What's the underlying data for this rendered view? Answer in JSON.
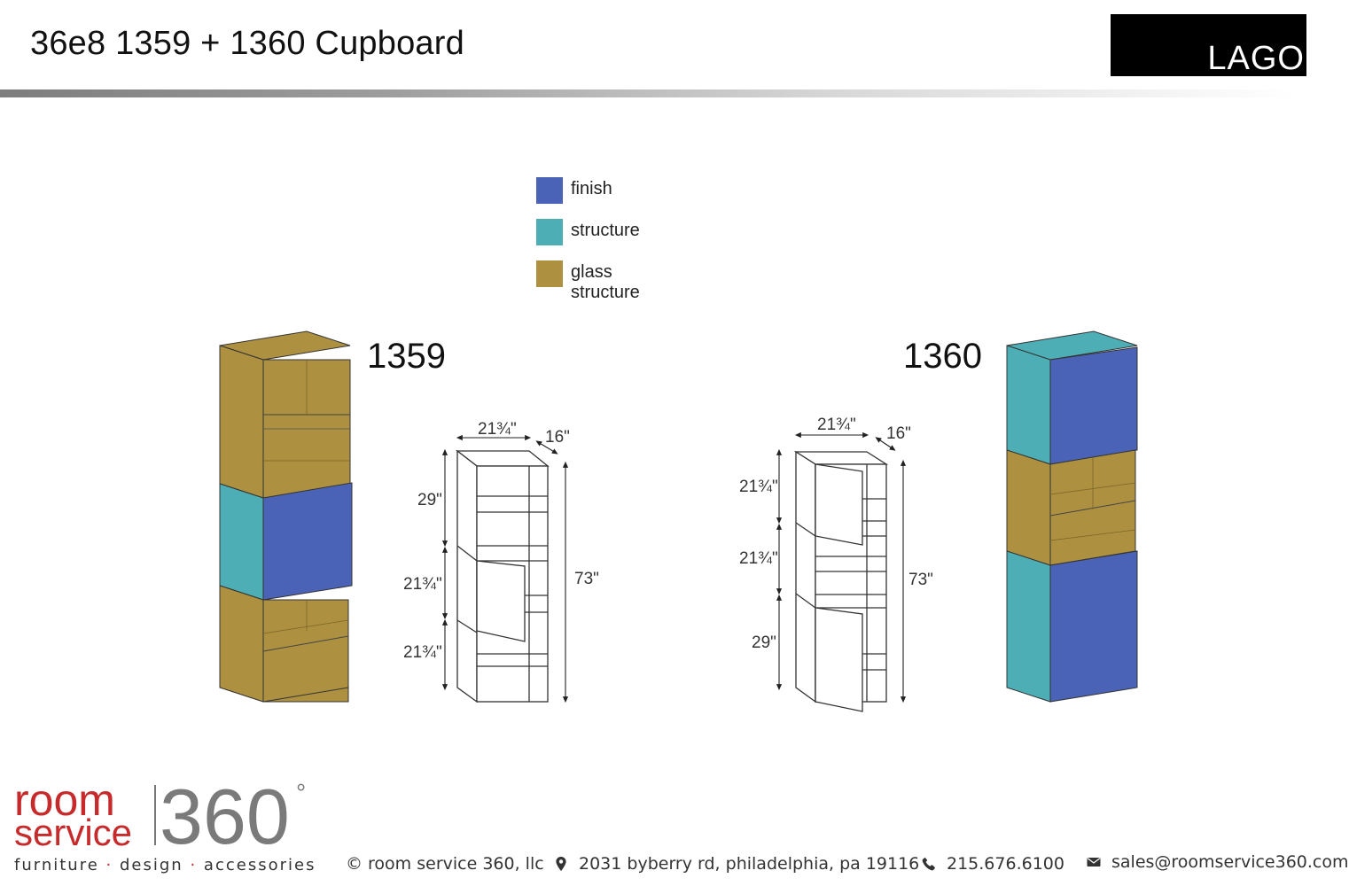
{
  "header": {
    "title": "36e8 1359 + 1360 Cupboard",
    "brand": "LAGO"
  },
  "legend": [
    {
      "label": "finish",
      "color": "#4a63b6"
    },
    {
      "label": "structure",
      "color": "#4daeb6"
    },
    {
      "label": "glass structure",
      "color": "#ad9040"
    }
  ],
  "models": {
    "left": {
      "label": "1359",
      "width": "21¾\"",
      "depth": "16\"",
      "total_height": "73\"",
      "section_heights": [
        "29\"",
        "21¾\"",
        "21¾\""
      ]
    },
    "right": {
      "label": "1360",
      "width": "21¾\"",
      "depth": "16\"",
      "total_height": "73\"",
      "section_heights": [
        "21¾\"",
        "21¾\"",
        "29\""
      ]
    }
  },
  "footer": {
    "logo_word_1": "room",
    "logo_word_2": "service",
    "logo_number": "360",
    "logo_degree": "°",
    "tagline": [
      "furniture",
      "design",
      "accessories"
    ],
    "tagline_separator": "·",
    "copyright": "© room service 360, llc",
    "address": "2031 byberry rd, philadelphia, pa 19116",
    "phone": "215.676.6100",
    "email": "sales@roomservice360.com"
  },
  "icons": {
    "location": "map-marker-icon",
    "phone": "phone-icon",
    "email": "envelope-icon"
  }
}
